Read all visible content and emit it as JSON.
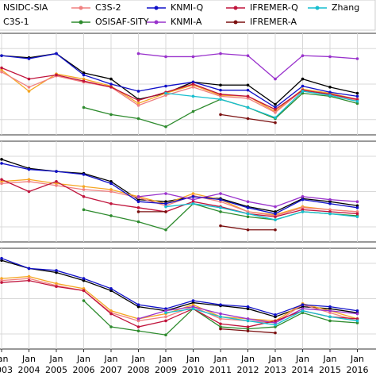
{
  "chart_data": [
    {
      "type": "line",
      "x": [
        2003,
        2004,
        2005,
        2006,
        2007,
        2008,
        2009,
        2010,
        2011,
        2012,
        2013,
        2014,
        2015,
        2016
      ],
      "xlim": [
        2003,
        2016.7
      ],
      "ylim": [
        0,
        100
      ],
      "yticks": [
        15,
        50,
        85
      ],
      "grid": true,
      "series": [
        {
          "name": "NSIDC-SIA",
          "color": "#000000",
          "values": [
            78,
            76,
            80,
            61,
            55,
            35,
            41,
            52,
            49,
            49,
            30,
            55,
            47,
            41
          ]
        },
        {
          "name": "C3S-1",
          "color": "#f5a623",
          "values": [
            64,
            43,
            60,
            55,
            48,
            31,
            41,
            49,
            39,
            38,
            23,
            45,
            41,
            35
          ]
        },
        {
          "name": "C3S-2",
          "color": "#f08080",
          "values": [
            62,
            47,
            58,
            52,
            47,
            29,
            39,
            47,
            38,
            36,
            22,
            44,
            40,
            34
          ]
        },
        {
          "name": "OSISAF-SITY",
          "color": "#2e8b2e",
          "values": [
            null,
            null,
            null,
            27,
            20,
            16,
            8,
            23,
            35,
            27,
            16,
            41,
            38,
            31
          ]
        },
        {
          "name": "KNMI-Q",
          "color": "#1010c8",
          "values": [
            78,
            75,
            80,
            59,
            50,
            43,
            48,
            52,
            44,
            44,
            27,
            48,
            42,
            38
          ]
        },
        {
          "name": "KNMI-A",
          "color": "#9932cc",
          "values": [
            null,
            null,
            null,
            null,
            null,
            80,
            77,
            77,
            80,
            78,
            55,
            78,
            77,
            75
          ]
        },
        {
          "name": "IFREMER-Q",
          "color": "#c0143c",
          "values": [
            66,
            55,
            59,
            53,
            47,
            34,
            42,
            50,
            40,
            38,
            25,
            44,
            40,
            35
          ]
        },
        {
          "name": "IFREMER-A",
          "color": "#7b1010",
          "values": [
            null,
            null,
            null,
            null,
            null,
            null,
            null,
            null,
            20,
            16,
            12,
            null,
            null,
            null
          ]
        },
        {
          "name": "Zhang",
          "color": "#17becf",
          "values": [
            null,
            null,
            null,
            null,
            null,
            null,
            41,
            38,
            35,
            27,
            17,
            43,
            39,
            33
          ]
        }
      ]
    },
    {
      "type": "line",
      "x": [
        2003,
        2004,
        2005,
        2006,
        2007,
        2008,
        2009,
        2010,
        2011,
        2012,
        2013,
        2014,
        2015,
        2016
      ],
      "xlim": [
        2003,
        2016.7
      ],
      "ylim": [
        0,
        100
      ],
      "yticks": [
        15,
        50,
        85
      ],
      "grid": true,
      "series": [
        {
          "color": "#000000",
          "values": [
            82,
            73,
            70,
            68,
            60,
            42,
            40,
            45,
            43,
            35,
            30,
            43,
            40,
            36
          ]
        },
        {
          "color": "#f5a623",
          "values": [
            60,
            62,
            58,
            55,
            52,
            45,
            38,
            48,
            42,
            30,
            27,
            35,
            32,
            30
          ]
        },
        {
          "color": "#f08080",
          "values": [
            58,
            60,
            56,
            52,
            50,
            44,
            36,
            46,
            40,
            30,
            26,
            34,
            32,
            30
          ]
        },
        {
          "color": "#2e8b2e",
          "values": [
            null,
            null,
            null,
            32,
            26,
            20,
            12,
            38,
            30,
            25,
            22,
            30,
            28,
            26
          ]
        },
        {
          "color": "#1010c8",
          "values": [
            78,
            72,
            70,
            67,
            58,
            40,
            38,
            45,
            42,
            34,
            28,
            42,
            38,
            34
          ]
        },
        {
          "color": "#9932cc",
          "values": [
            null,
            null,
            null,
            null,
            null,
            45,
            48,
            42,
            48,
            40,
            35,
            45,
            42,
            40
          ]
        },
        {
          "color": "#c0143c",
          "values": [
            62,
            50,
            60,
            45,
            38,
            34,
            30,
            40,
            35,
            28,
            25,
            32,
            30,
            28
          ]
        },
        {
          "color": "#7b1010",
          "values": [
            null,
            null,
            null,
            null,
            null,
            30,
            30,
            null,
            16,
            12,
            12,
            null,
            null,
            null
          ]
        },
        {
          "color": "#17becf",
          "values": [
            null,
            null,
            null,
            null,
            null,
            null,
            35,
            38,
            34,
            28,
            22,
            30,
            28,
            25
          ]
        }
      ]
    },
    {
      "type": "line",
      "x": [
        2003,
        2004,
        2005,
        2006,
        2007,
        2008,
        2009,
        2010,
        2011,
        2012,
        2013,
        2014,
        2015,
        2016
      ],
      "xlim": [
        2003,
        2016.7
      ],
      "ylim": [
        0,
        100
      ],
      "yticks": [
        15,
        50,
        85
      ],
      "grid": true,
      "xticks": [
        {
          "value": 2003,
          "label": "Jan 2003"
        },
        {
          "value": 2004,
          "label": "Jan 2004"
        },
        {
          "value": 2005,
          "label": "Jan 2005"
        },
        {
          "value": 2006,
          "label": "Jan 2006"
        },
        {
          "value": 2007,
          "label": "Jan 2007"
        },
        {
          "value": 2008,
          "label": "Jan 2008"
        },
        {
          "value": 2009,
          "label": "Jan 2009"
        },
        {
          "value": 2010,
          "label": "Jan 2010"
        },
        {
          "value": 2011,
          "label": "Jan 2011"
        },
        {
          "value": 2012,
          "label": "Jan 2012"
        },
        {
          "value": 2013,
          "label": "Jan 2013"
        },
        {
          "value": 2014,
          "label": "Jan 2014"
        },
        {
          "value": 2015,
          "label": "Jan 2015"
        },
        {
          "value": 2016,
          "label": "Jan 2016"
        }
      ],
      "series": [
        {
          "color": "#000000",
          "values": [
            88,
            80,
            76,
            68,
            58,
            42,
            38,
            46,
            43,
            40,
            32,
            42,
            40,
            36
          ]
        },
        {
          "color": "#f5a623",
          "values": [
            70,
            72,
            65,
            60,
            38,
            30,
            35,
            44,
            32,
            30,
            28,
            45,
            38,
            30
          ]
        },
        {
          "color": "#f08080",
          "values": [
            68,
            70,
            63,
            58,
            36,
            28,
            32,
            42,
            30,
            28,
            26,
            44,
            36,
            28
          ]
        },
        {
          "color": "#2e8b2e",
          "values": [
            null,
            null,
            null,
            48,
            22,
            18,
            14,
            40,
            22,
            20,
            22,
            36,
            28,
            26
          ]
        },
        {
          "color": "#1010c8",
          "values": [
            90,
            80,
            78,
            70,
            60,
            44,
            40,
            48,
            44,
            42,
            34,
            44,
            42,
            38
          ]
        },
        {
          "color": "#9932cc",
          "values": [
            null,
            null,
            null,
            null,
            null,
            30,
            38,
            42,
            35,
            30,
            26,
            40,
            38,
            35
          ]
        },
        {
          "color": "#c0143c",
          "values": [
            66,
            68,
            62,
            58,
            35,
            22,
            28,
            40,
            25,
            22,
            28,
            38,
            32,
            30
          ]
        },
        {
          "color": "#7b1010",
          "values": [
            null,
            null,
            null,
            null,
            null,
            null,
            null,
            null,
            20,
            18,
            16,
            null,
            null,
            null
          ]
        },
        {
          "color": "#17becf",
          "values": [
            null,
            null,
            null,
            null,
            null,
            null,
            36,
            40,
            32,
            28,
            24,
            38,
            32,
            28
          ]
        }
      ]
    }
  ]
}
